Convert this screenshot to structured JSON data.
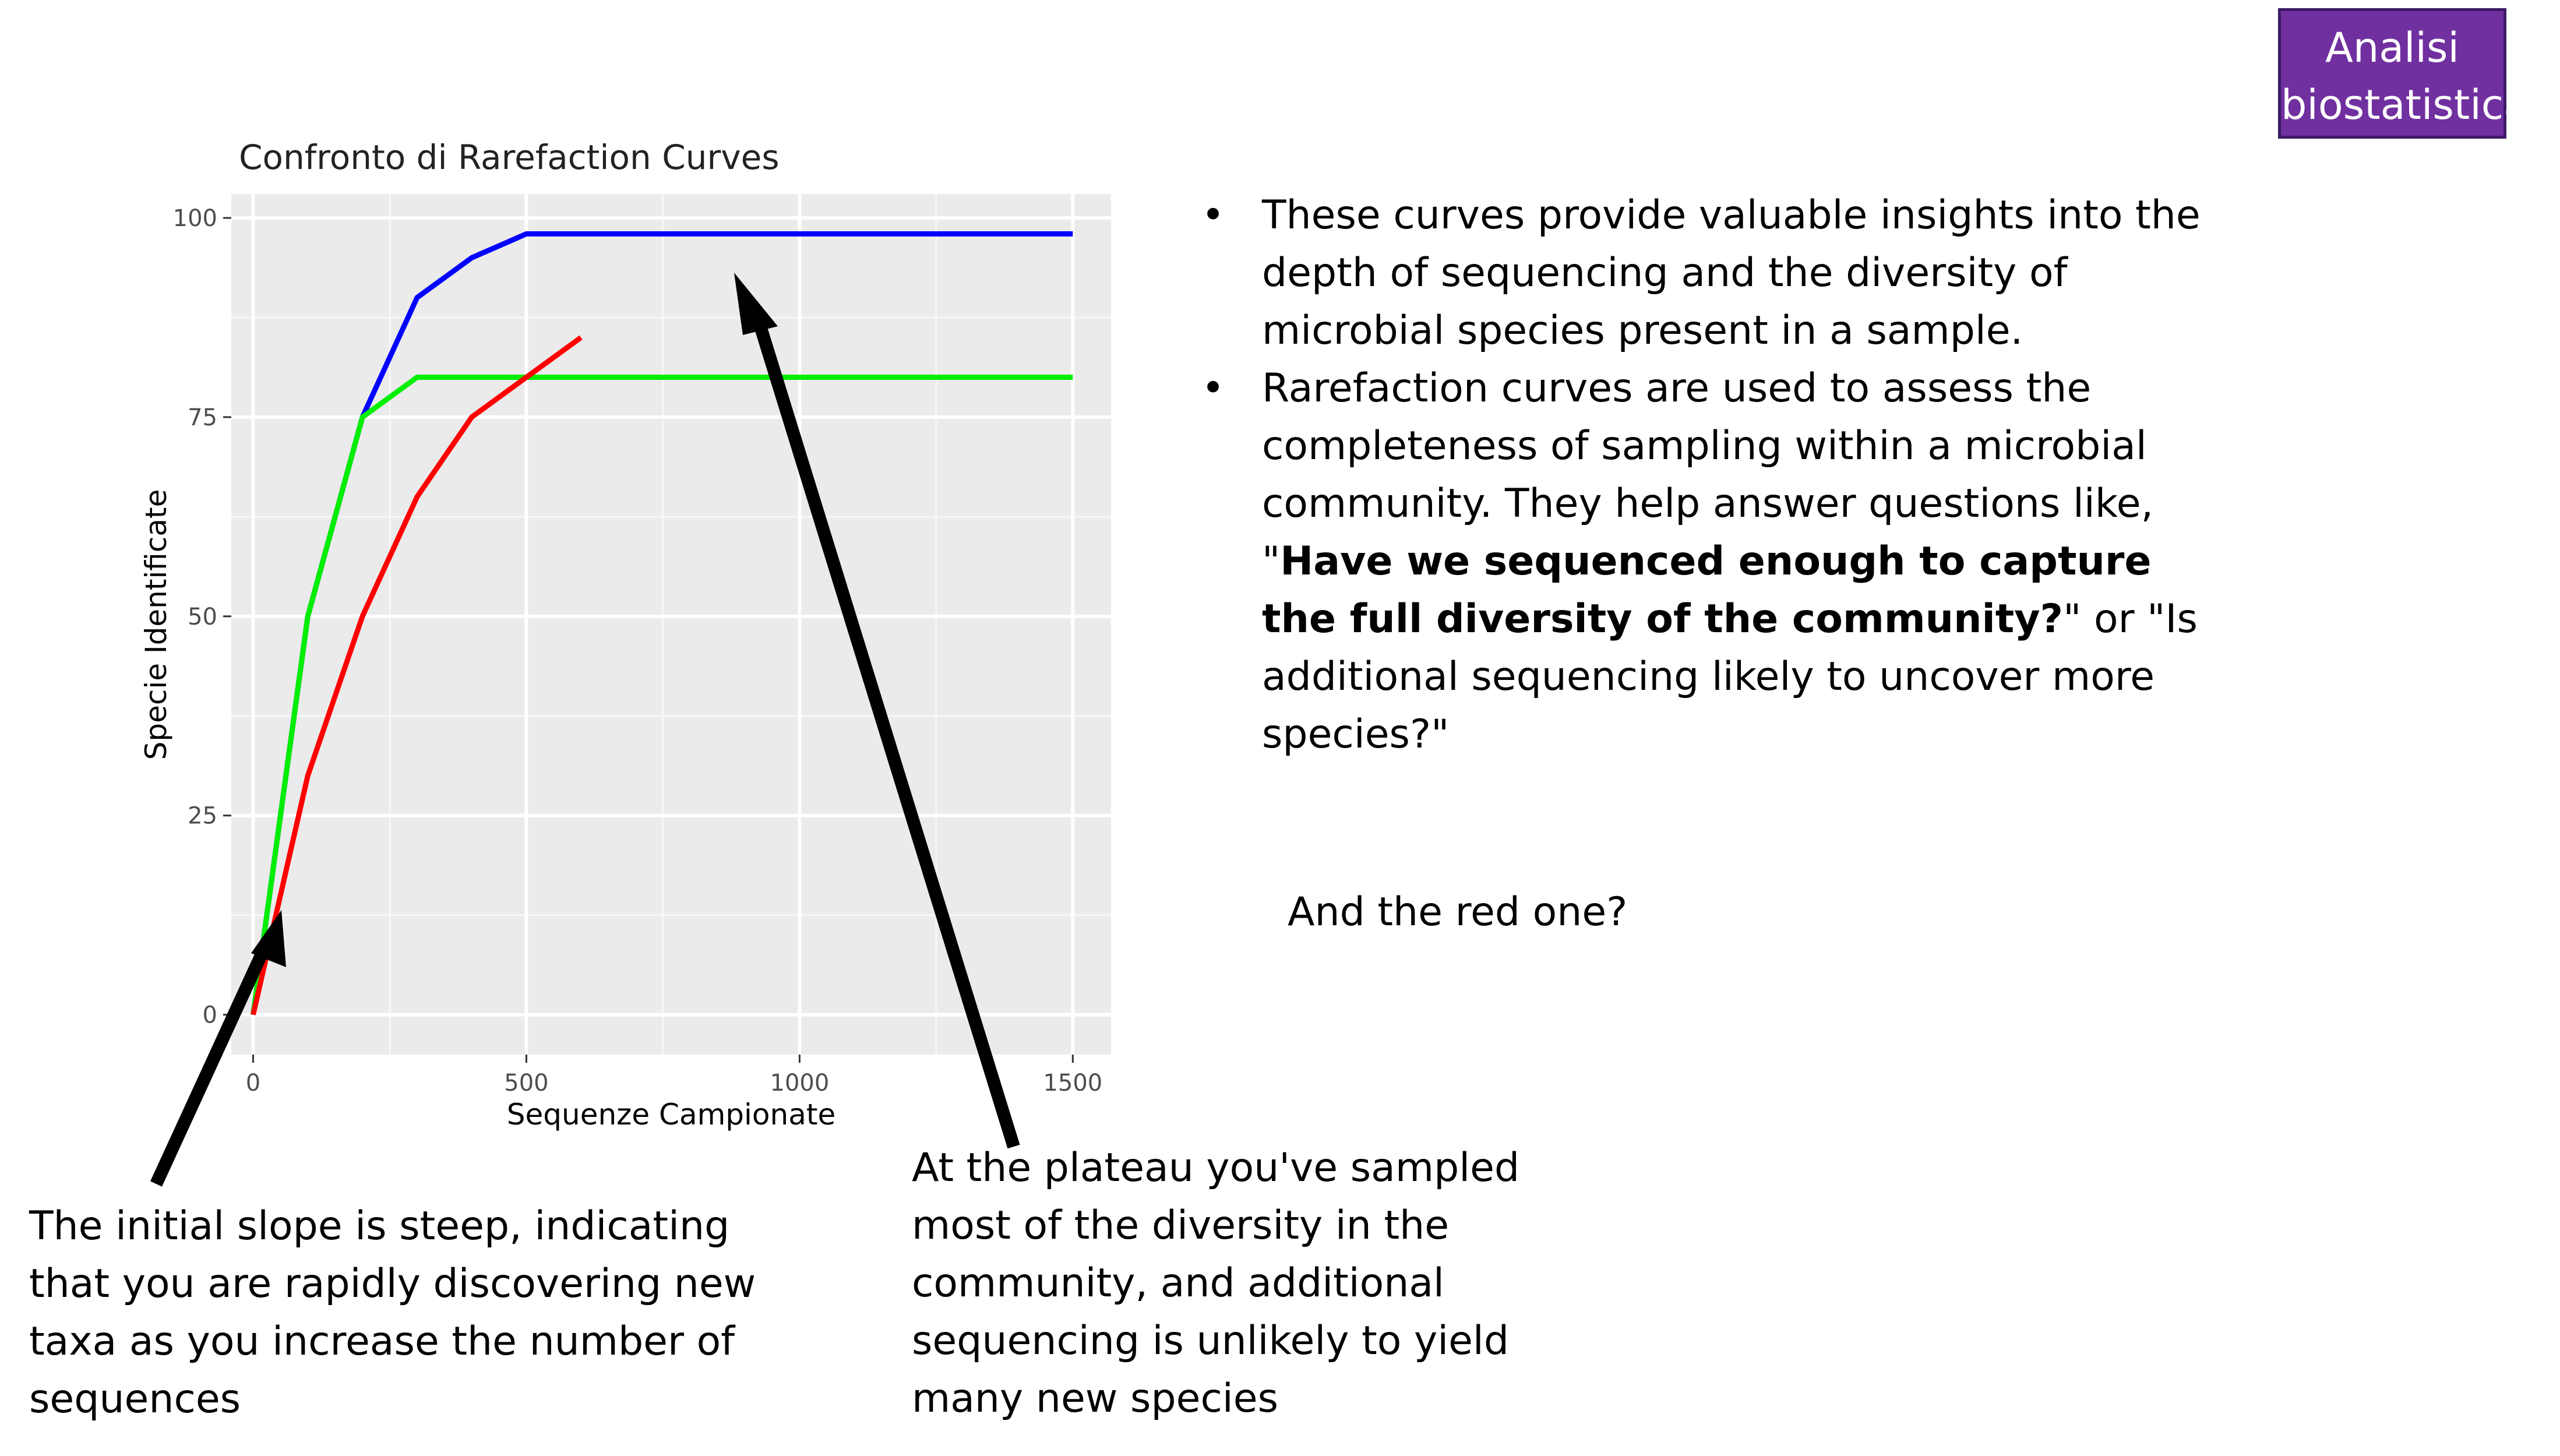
{
  "badge": {
    "line1": "Analisi",
    "line2": "biostatistica"
  },
  "chart_data": {
    "type": "line",
    "title": "Confronto di Rarefaction Curves",
    "xlabel": "Sequenze Campionate",
    "ylabel": "Specie Identificate",
    "xlim": [
      -40,
      1570
    ],
    "ylim": [
      -5,
      103
    ],
    "xticks": [
      0,
      500,
      1000,
      1500
    ],
    "yticks": [
      0,
      25,
      50,
      75,
      100
    ],
    "grid": true,
    "series": [
      {
        "color": "#0000ff",
        "x": [
          0,
          100,
          200,
          300,
          400,
          500,
          1500
        ],
        "y": [
          0,
          50,
          75,
          90,
          95,
          98,
          98
        ]
      },
      {
        "color": "#00ee00",
        "x": [
          0,
          100,
          200,
          300,
          1500
        ],
        "y": [
          0,
          50,
          75,
          80,
          80
        ]
      },
      {
        "color": "#ff0000",
        "x": [
          0,
          100,
          200,
          300,
          400,
          500,
          600
        ],
        "y": [
          0,
          30,
          50,
          65,
          75,
          80,
          85
        ]
      }
    ]
  },
  "bullets": {
    "b1": "These curves provide valuable insights into the depth of sequencing and the diversity of microbial species present in a sample.",
    "b2_a": "Rarefaction curves are used to assess the completeness of sampling within a microbial community. They help answer questions like, \"",
    "b2_bold": "Have we sequenced enough to capture the full diversity of the community?",
    "b2_c": "\" or \"Is additional sequencing likely to uncover more species?\""
  },
  "question": "And the red one?",
  "annotations": {
    "left": "The initial slope is steep, indicating that you are rapidly discovering new taxa as you increase the number of sequences",
    "right": "At the plateau you've sampled most of the diversity in the community, and additional sequencing is unlikely to yield many new species"
  },
  "colors": {
    "badge_bg": "#7030a0",
    "panel_bg": "#ebebeb",
    "arrow": "#000000"
  }
}
